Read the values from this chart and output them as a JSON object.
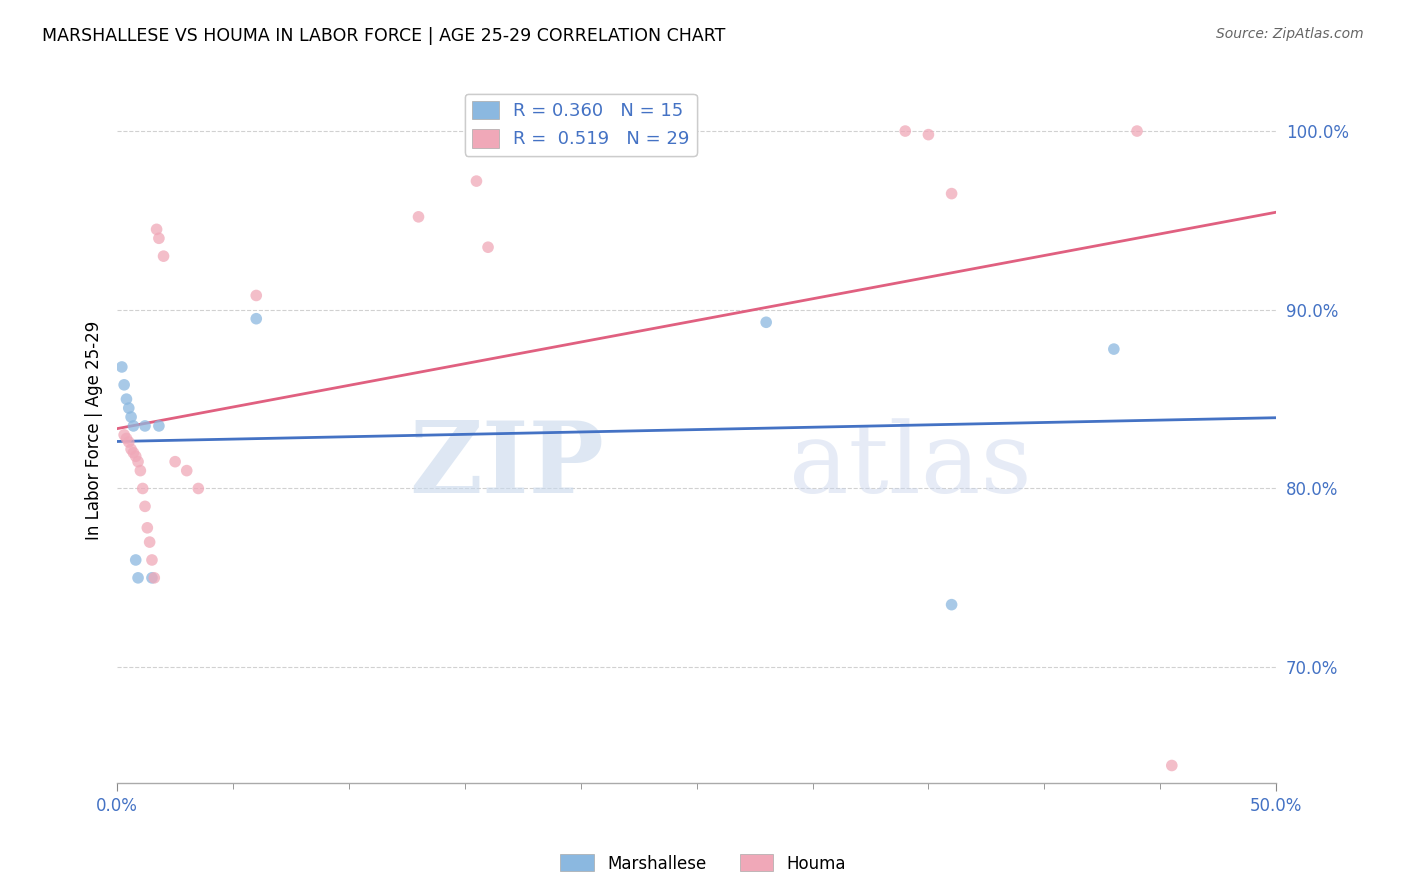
{
  "title": "MARSHALLESE VS HOUMA IN LABOR FORCE | AGE 25-29 CORRELATION CHART",
  "source": "Source: ZipAtlas.com",
  "ylabel": "In Labor Force | Age 25-29",
  "xlim": [
    0.0,
    0.5
  ],
  "ylim": [
    0.635,
    1.03
  ],
  "xtick_minor": [
    0.05,
    0.1,
    0.15,
    0.2,
    0.25,
    0.3,
    0.35,
    0.4,
    0.45
  ],
  "xtick_labeled": [
    0.0,
    0.5
  ],
  "xticklabels": [
    "0.0%",
    "50.0%"
  ],
  "yticks": [
    0.7,
    0.8,
    0.9,
    1.0
  ],
  "yticklabels": [
    "70.0%",
    "80.0%",
    "90.0%",
    "100.0%"
  ],
  "marshallese_x": [
    0.002,
    0.003,
    0.004,
    0.005,
    0.006,
    0.007,
    0.008,
    0.009,
    0.012,
    0.015,
    0.018,
    0.06,
    0.28,
    0.36,
    0.43
  ],
  "marshallese_y": [
    0.868,
    0.858,
    0.85,
    0.845,
    0.84,
    0.835,
    0.76,
    0.75,
    0.835,
    0.75,
    0.835,
    0.895,
    0.893,
    0.735,
    0.878
  ],
  "houma_x": [
    0.003,
    0.004,
    0.005,
    0.006,
    0.007,
    0.008,
    0.009,
    0.01,
    0.011,
    0.012,
    0.013,
    0.014,
    0.015,
    0.016,
    0.017,
    0.018,
    0.02,
    0.025,
    0.03,
    0.035,
    0.06,
    0.13,
    0.155,
    0.16,
    0.34,
    0.35,
    0.36,
    0.44,
    0.455
  ],
  "houma_y": [
    0.83,
    0.828,
    0.826,
    0.822,
    0.82,
    0.818,
    0.815,
    0.81,
    0.8,
    0.79,
    0.778,
    0.77,
    0.76,
    0.75,
    0.945,
    0.94,
    0.93,
    0.815,
    0.81,
    0.8,
    0.908,
    0.952,
    0.972,
    0.935,
    1.0,
    0.998,
    0.965,
    1.0,
    0.645
  ],
  "blue_color": "#8BB8E0",
  "pink_color": "#F0A8B8",
  "blue_line_color": "#4472C4",
  "pink_line_color": "#E06080",
  "marker_size": 70,
  "marker_alpha": 0.75,
  "legend_text_blue": "R = 0.360   N = 15",
  "legend_text_pink": "R =  0.519   N = 29",
  "watermark_zip": "ZIP",
  "watermark_atlas": "atlas",
  "background_color": "#FFFFFF",
  "grid_color": "#CCCCCC",
  "tick_color": "#4472C4"
}
